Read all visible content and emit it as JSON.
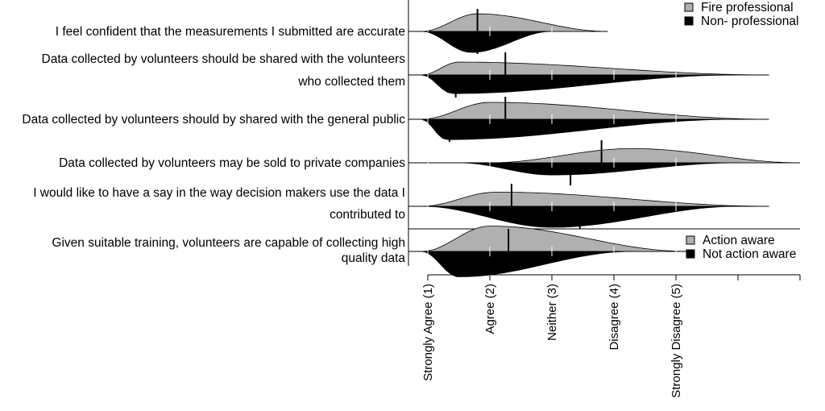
{
  "chart_data": [
    {
      "type": "area",
      "title": "",
      "xlabel": "",
      "ylabel": "",
      "xlim": [
        0,
        7
      ],
      "x": [
        1,
        2,
        3,
        4,
        5
      ],
      "tick_labels": [
        "Strongly Agree (1)",
        "Agree (2)",
        "Neither (3)",
        "Disagree (4)",
        "Strongly Disagree (5)"
      ],
      "legend": {
        "position": "top-right",
        "entries": [
          {
            "name": "Fire professional",
            "color": "#b0b0b0"
          },
          {
            "name": "Non- professional",
            "color": "#000000"
          }
        ]
      },
      "series": [
        {
          "name": "Fire professional",
          "color": "#b0b0b0",
          "side": "upper"
        },
        {
          "name": "Non- professional",
          "color": "#000000",
          "side": "lower"
        }
      ],
      "questions": [
        {
          "label": [
            "I feel confident that the measurements I submitted are accurate"
          ],
          "upper": {
            "peak_x": 1.8,
            "peak_height": 0.52,
            "range": [
              0.9,
              3.9
            ],
            "mean": 1.8
          },
          "lower": {
            "peak_x": 1.7,
            "peak_height": 0.62,
            "range": [
              0.9,
              3.0
            ],
            "mean": 1.8
          }
        },
        {
          "label": [
            "Data collected by volunteers should be shared with the volunteers",
            "who collected them"
          ],
          "upper": {
            "peak_x": 1.5,
            "peak_height": 0.38,
            "range": [
              0.9,
              6.5
            ],
            "mean": 2.25
          },
          "lower": {
            "peak_x": 1.4,
            "peak_height": 0.55,
            "range": [
              0.9,
              6.0
            ],
            "mean": 1.45
          }
        },
        {
          "label": [
            "Data collected by volunteers should by shared with the general public"
          ],
          "upper": {
            "peak_x": 2.0,
            "peak_height": 0.5,
            "range": [
              0.9,
              6.5
            ],
            "mean": 2.25
          },
          "lower": {
            "peak_x": 1.3,
            "peak_height": 0.6,
            "range": [
              0.9,
              6.0
            ],
            "mean": 1.35
          }
        },
        {
          "label": [
            "Data collected by volunteers may be sold to private companies"
          ],
          "upper": {
            "peak_x": 4.3,
            "peak_height": 0.42,
            "range": [
              2.0,
              7.0
            ],
            "mean": 3.8
          },
          "lower": {
            "peak_x": 3.0,
            "peak_height": 0.36,
            "range": [
              1.5,
              6.0
            ],
            "mean": 3.3
          }
        },
        {
          "label": [
            "I would like to have a say in the way decision makers use the data I",
            "contributed to"
          ],
          "upper": {
            "peak_x": 2.1,
            "peak_height": 0.42,
            "range": [
              0.9,
              6.5
            ],
            "mean": 2.35
          },
          "lower": {
            "peak_x": 3.0,
            "peak_height": 0.62,
            "range": [
              0.9,
              6.0
            ],
            "mean": 3.45
          }
        }
      ]
    },
    {
      "type": "area",
      "title": "",
      "legend": {
        "position": "bottom-right",
        "entries": [
          {
            "name": "Action aware",
            "color": "#b0b0b0"
          },
          {
            "name": "Not action aware",
            "color": "#000000"
          }
        ]
      },
      "series": [
        {
          "name": "Action aware",
          "color": "#b0b0b0",
          "side": "upper"
        },
        {
          "name": "Not action aware",
          "color": "#000000",
          "side": "lower"
        }
      ],
      "questions": [
        {
          "label": [
            "Given suitable training, volunteers are capable of collecting high",
            "quality data"
          ],
          "upper": {
            "peak_x": 2.0,
            "peak_height": 0.75,
            "range": [
              0.9,
              5.2
            ],
            "mean": 2.3
          },
          "lower": {
            "peak_x": 1.5,
            "peak_height": 0.75,
            "range": [
              0.9,
              4.3
            ],
            "mean": 1.5
          }
        }
      ]
    }
  ]
}
